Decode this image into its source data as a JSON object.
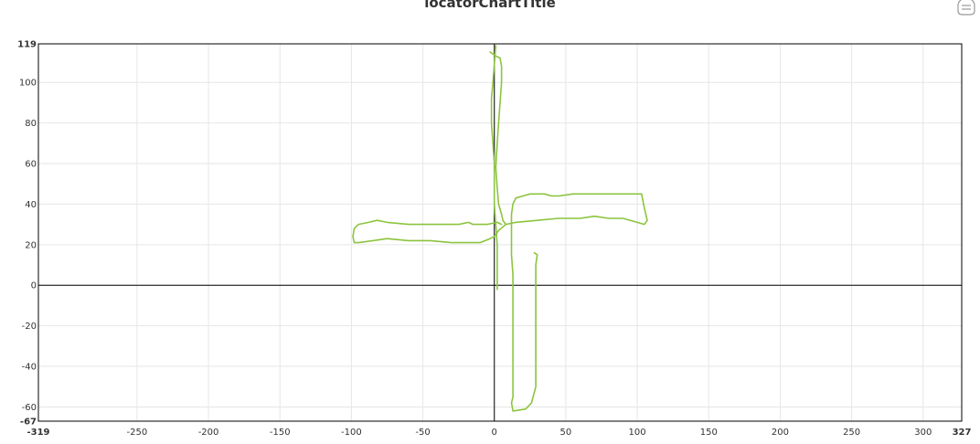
{
  "chart_data": {
    "type": "line",
    "title": "locatorChartTitle",
    "xlabel": "",
    "ylabel": "",
    "xlim": [
      -319,
      327
    ],
    "ylim": [
      -67,
      119
    ],
    "xticks": [
      -250,
      -200,
      -150,
      -100,
      -50,
      0,
      50,
      100,
      150,
      200,
      250,
      300
    ],
    "yticks": [
      -60,
      -40,
      -20,
      0,
      20,
      40,
      60,
      80,
      100
    ],
    "x_end_labels": [
      "-319",
      "327"
    ],
    "y_end_labels": [
      "-67",
      "119"
    ],
    "grid": true,
    "line_color": "#8cc43f",
    "axis_color": "#000000",
    "grid_color": "#e6e6e6",
    "series": [
      {
        "points": [
          [
            -3,
            115
          ],
          [
            1,
            113
          ],
          [
            4,
            112
          ],
          [
            5,
            108
          ],
          [
            5,
            100
          ],
          [
            4,
            90
          ],
          [
            3,
            80
          ],
          [
            2,
            70
          ],
          [
            1,
            58
          ],
          [
            2,
            48
          ],
          [
            3,
            40
          ],
          [
            5,
            35
          ],
          [
            6,
            32
          ],
          [
            8,
            30
          ],
          [
            15,
            31
          ],
          [
            30,
            32
          ],
          [
            45,
            33
          ],
          [
            60,
            33
          ],
          [
            70,
            34
          ],
          [
            80,
            33
          ],
          [
            90,
            33
          ],
          [
            100,
            31
          ],
          [
            105,
            30
          ],
          [
            107,
            32
          ],
          [
            105,
            38
          ],
          [
            103,
            45
          ],
          [
            90,
            45
          ],
          [
            70,
            45
          ],
          [
            55,
            45
          ],
          [
            45,
            44
          ],
          [
            40,
            44
          ],
          [
            35,
            45
          ],
          [
            25,
            45
          ],
          [
            20,
            44
          ],
          [
            15,
            43
          ],
          [
            13,
            40
          ],
          [
            12,
            35
          ],
          [
            12,
            26
          ],
          [
            12,
            15
          ],
          [
            13,
            5
          ],
          [
            13,
            -10
          ],
          [
            13,
            -30
          ],
          [
            13,
            -50
          ],
          [
            13,
            -55
          ],
          [
            12,
            -58
          ],
          [
            13,
            -62
          ],
          [
            22,
            -61
          ],
          [
            26,
            -58
          ],
          [
            29,
            -50
          ],
          [
            29,
            -30
          ],
          [
            29,
            -5
          ],
          [
            29,
            10
          ],
          [
            30,
            15
          ],
          [
            28,
            16
          ]
        ]
      },
      {
        "points": [
          [
            1,
            118
          ],
          [
            -1,
            100
          ],
          [
            -2,
            92
          ],
          [
            -2,
            80
          ],
          [
            -1,
            70
          ],
          [
            0,
            60
          ],
          [
            0,
            40
          ],
          [
            1,
            30
          ],
          [
            2,
            20
          ],
          [
            2,
            0
          ],
          [
            2,
            -2
          ]
        ]
      },
      {
        "points": [
          [
            5,
            30
          ],
          [
            2,
            31
          ],
          [
            -5,
            30
          ],
          [
            -15,
            30
          ],
          [
            -18,
            31
          ],
          [
            -25,
            30
          ],
          [
            -30,
            30
          ],
          [
            -45,
            30
          ],
          [
            -60,
            30
          ],
          [
            -75,
            31
          ],
          [
            -82,
            32
          ],
          [
            -88,
            31
          ],
          [
            -95,
            30
          ],
          [
            -98,
            28
          ],
          [
            -99,
            24
          ],
          [
            -98,
            21
          ],
          [
            -95,
            21
          ],
          [
            -85,
            22
          ],
          [
            -75,
            23
          ],
          [
            -60,
            22
          ],
          [
            -45,
            22
          ],
          [
            -30,
            21
          ],
          [
            -10,
            21
          ],
          [
            -3,
            23
          ],
          [
            0,
            24
          ],
          [
            3,
            27
          ],
          [
            8,
            30
          ]
        ]
      }
    ]
  }
}
